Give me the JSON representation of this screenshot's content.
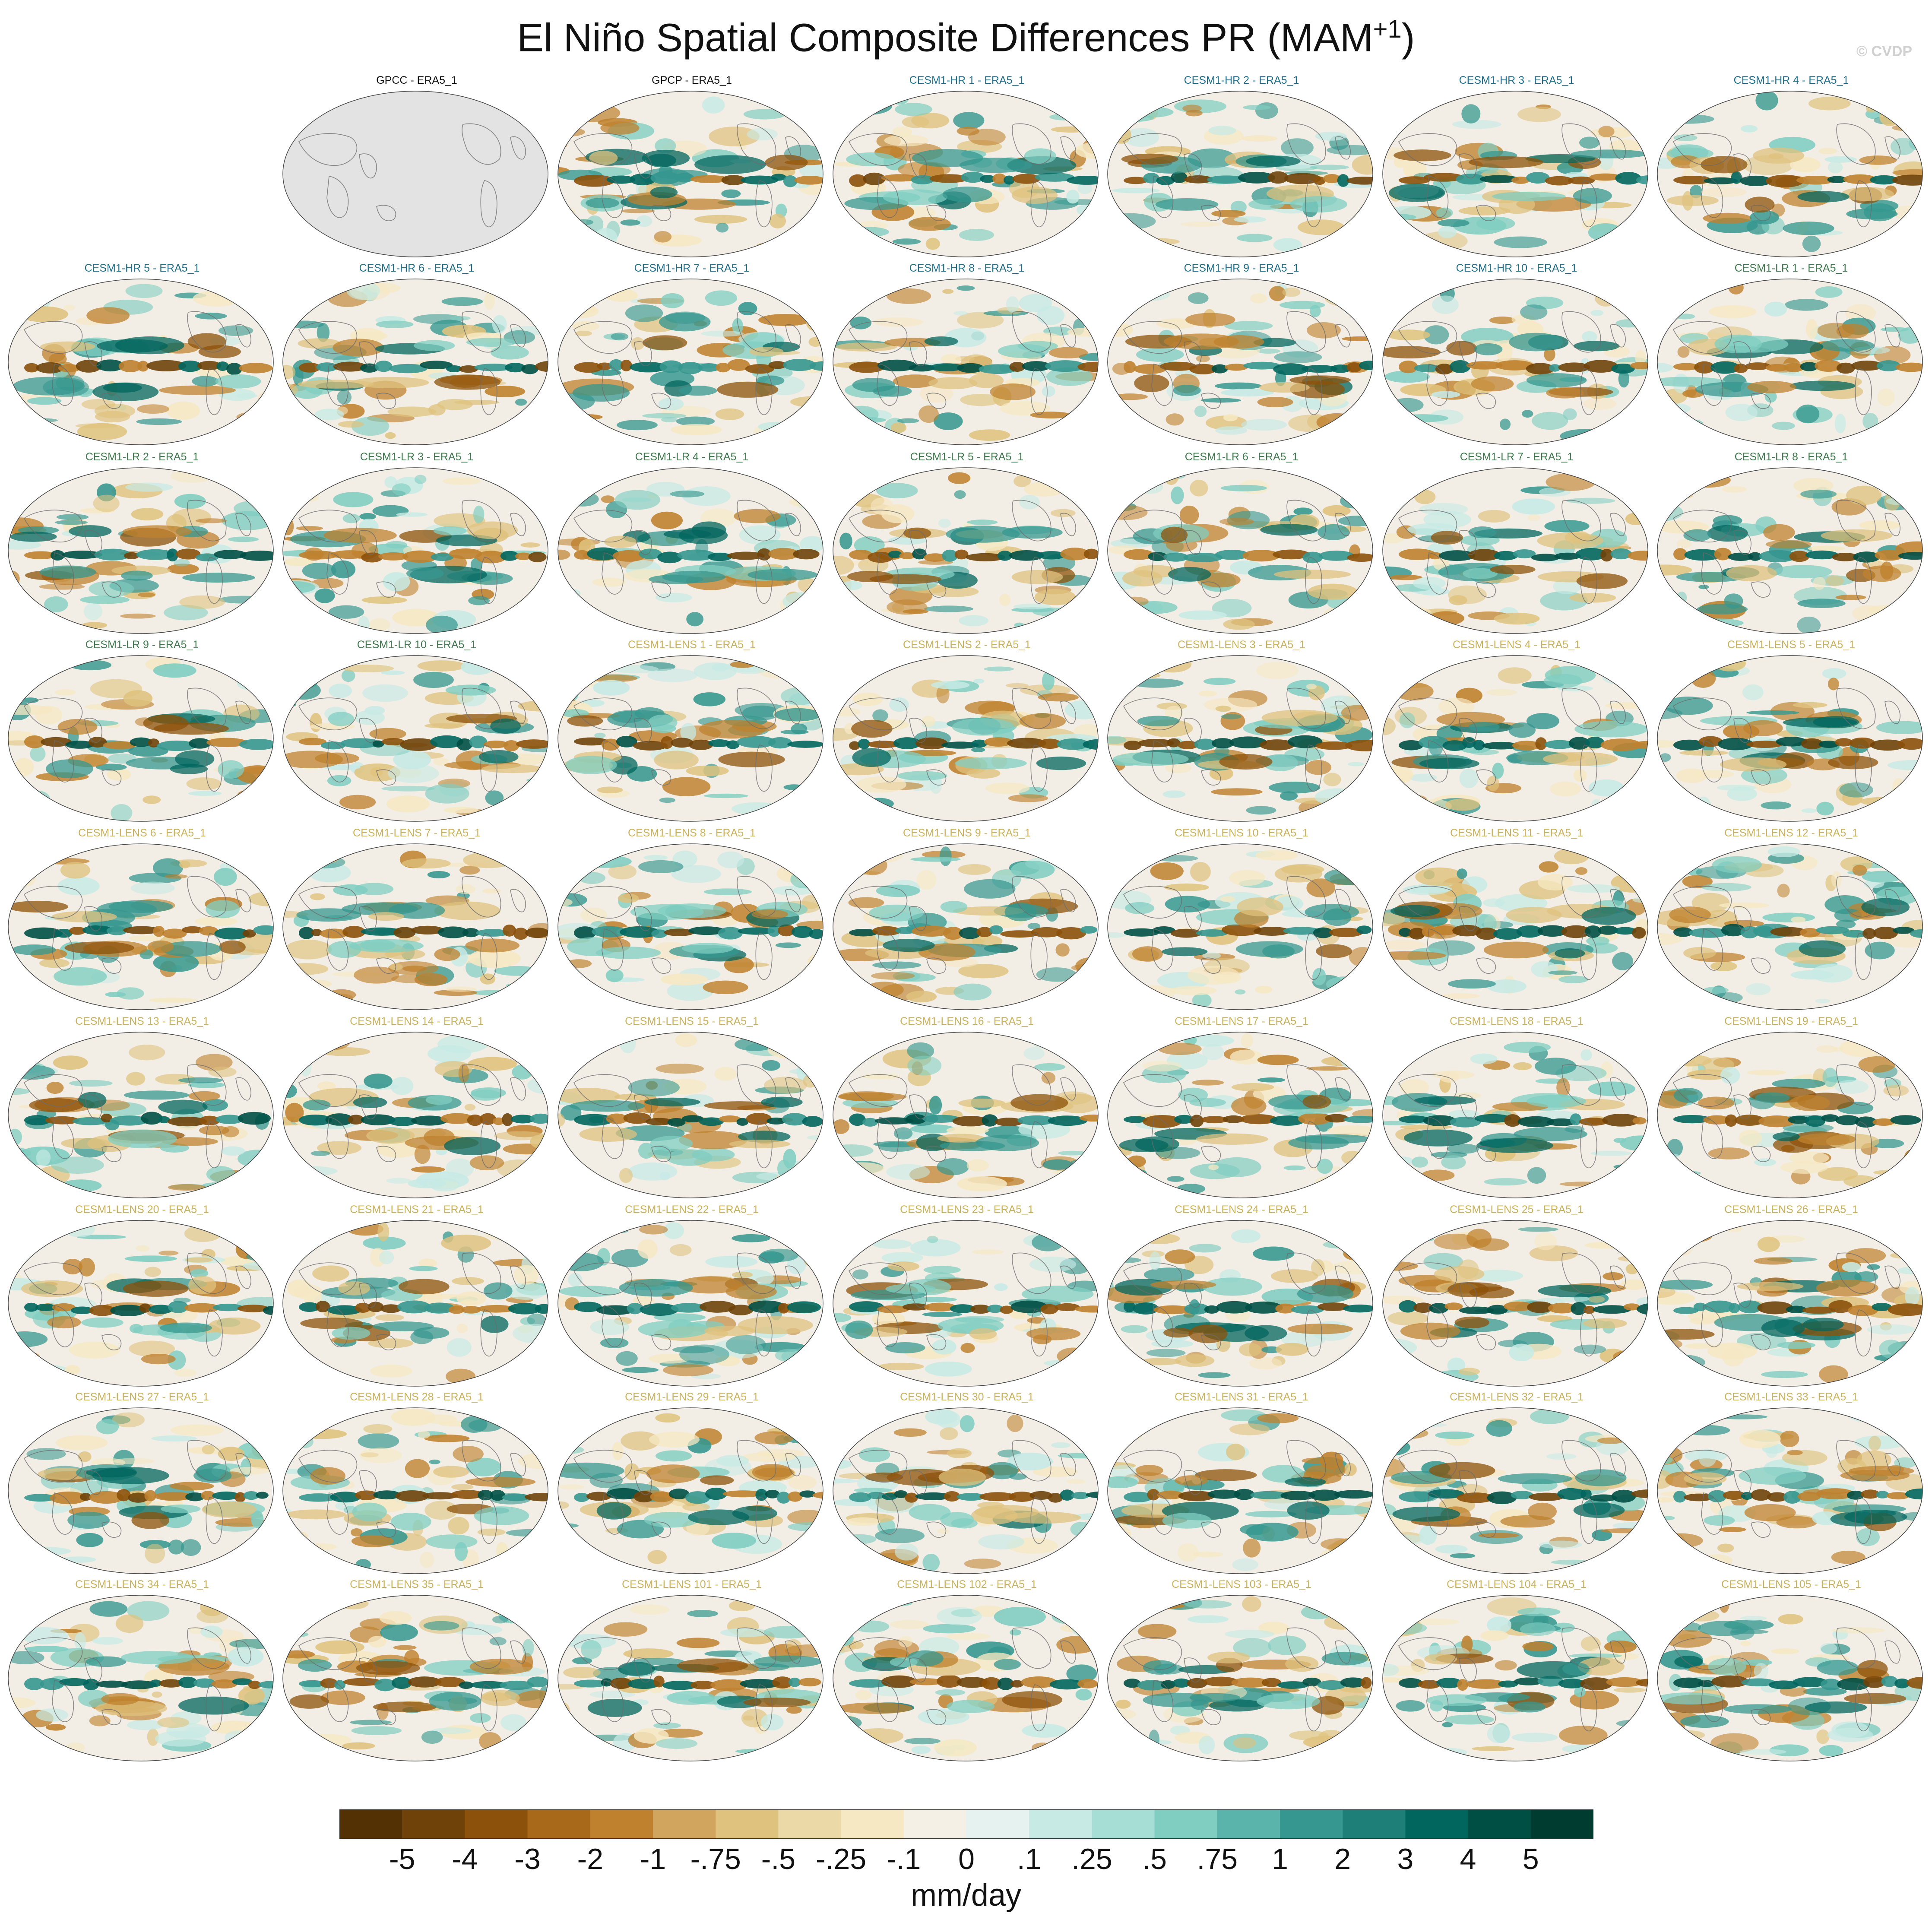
{
  "figure": {
    "title_main": "El Niño Spatial Composite Differences PR (MAM",
    "title_sup": "+1",
    "title_close": ")",
    "watermark": "© CVDP"
  },
  "colors": {
    "obs_title": "#111111",
    "hr_title": "#1f6f8b",
    "lr_title": "#3f7a4e",
    "lens_title": "#c9b25a",
    "missing_fill": "#e3e3e3"
  },
  "panels": [
    {
      "label": "GPCC - ERA5_1",
      "group": "obs",
      "missing": true
    },
    {
      "label": "GPCP - ERA5_1",
      "group": "obs",
      "missing": false
    },
    {
      "label": "CESM1-HR 1 - ERA5_1",
      "group": "hr",
      "missing": false
    },
    {
      "label": "CESM1-HR 2 - ERA5_1",
      "group": "hr",
      "missing": false
    },
    {
      "label": "CESM1-HR 3 - ERA5_1",
      "group": "hr",
      "missing": false
    },
    {
      "label": "CESM1-HR 4 - ERA5_1",
      "group": "hr",
      "missing": false
    },
    {
      "label": "CESM1-HR 5 - ERA5_1",
      "group": "hr",
      "missing": false
    },
    {
      "label": "CESM1-HR 6 - ERA5_1",
      "group": "hr",
      "missing": false
    },
    {
      "label": "CESM1-HR 7 - ERA5_1",
      "group": "hr",
      "missing": false
    },
    {
      "label": "CESM1-HR 8 - ERA5_1",
      "group": "hr",
      "missing": false
    },
    {
      "label": "CESM1-HR 9 - ERA5_1",
      "group": "hr",
      "missing": false
    },
    {
      "label": "CESM1-HR 10 - ERA5_1",
      "group": "hr",
      "missing": false
    },
    {
      "label": "CESM1-LR 1 - ERA5_1",
      "group": "lr",
      "missing": false
    },
    {
      "label": "CESM1-LR 2 - ERA5_1",
      "group": "lr",
      "missing": false
    },
    {
      "label": "CESM1-LR 3 - ERA5_1",
      "group": "lr",
      "missing": false
    },
    {
      "label": "CESM1-LR 4 - ERA5_1",
      "group": "lr",
      "missing": false
    },
    {
      "label": "CESM1-LR 5 - ERA5_1",
      "group": "lr",
      "missing": false
    },
    {
      "label": "CESM1-LR 6 - ERA5_1",
      "group": "lr",
      "missing": false
    },
    {
      "label": "CESM1-LR 7 - ERA5_1",
      "group": "lr",
      "missing": false
    },
    {
      "label": "CESM1-LR 8 - ERA5_1",
      "group": "lr",
      "missing": false
    },
    {
      "label": "CESM1-LR 9 - ERA5_1",
      "group": "lr",
      "missing": false
    },
    {
      "label": "CESM1-LR 10 - ERA5_1",
      "group": "lr",
      "missing": false
    },
    {
      "label": "CESM1-LENS 1 - ERA5_1",
      "group": "lens",
      "missing": false
    },
    {
      "label": "CESM1-LENS 2 - ERA5_1",
      "group": "lens",
      "missing": false
    },
    {
      "label": "CESM1-LENS 3 - ERA5_1",
      "group": "lens",
      "missing": false
    },
    {
      "label": "CESM1-LENS 4 - ERA5_1",
      "group": "lens",
      "missing": false
    },
    {
      "label": "CESM1-LENS 5 - ERA5_1",
      "group": "lens",
      "missing": false
    },
    {
      "label": "CESM1-LENS 6 - ERA5_1",
      "group": "lens",
      "missing": false
    },
    {
      "label": "CESM1-LENS 7 - ERA5_1",
      "group": "lens",
      "missing": false
    },
    {
      "label": "CESM1-LENS 8 - ERA5_1",
      "group": "lens",
      "missing": false
    },
    {
      "label": "CESM1-LENS 9 - ERA5_1",
      "group": "lens",
      "missing": false
    },
    {
      "label": "CESM1-LENS 10 - ERA5_1",
      "group": "lens",
      "missing": false
    },
    {
      "label": "CESM1-LENS 11 - ERA5_1",
      "group": "lens",
      "missing": false
    },
    {
      "label": "CESM1-LENS 12 - ERA5_1",
      "group": "lens",
      "missing": false
    },
    {
      "label": "CESM1-LENS 13 - ERA5_1",
      "group": "lens",
      "missing": false
    },
    {
      "label": "CESM1-LENS 14 - ERA5_1",
      "group": "lens",
      "missing": false
    },
    {
      "label": "CESM1-LENS 15 - ERA5_1",
      "group": "lens",
      "missing": false
    },
    {
      "label": "CESM1-LENS 16 - ERA5_1",
      "group": "lens",
      "missing": false
    },
    {
      "label": "CESM1-LENS 17 - ERA5_1",
      "group": "lens",
      "missing": false
    },
    {
      "label": "CESM1-LENS 18 - ERA5_1",
      "group": "lens",
      "missing": false
    },
    {
      "label": "CESM1-LENS 19 - ERA5_1",
      "group": "lens",
      "missing": false
    },
    {
      "label": "CESM1-LENS 20 - ERA5_1",
      "group": "lens",
      "missing": false
    },
    {
      "label": "CESM1-LENS 21 - ERA5_1",
      "group": "lens",
      "missing": false
    },
    {
      "label": "CESM1-LENS 22 - ERA5_1",
      "group": "lens",
      "missing": false
    },
    {
      "label": "CESM1-LENS 23 - ERA5_1",
      "group": "lens",
      "missing": false
    },
    {
      "label": "CESM1-LENS 24 - ERA5_1",
      "group": "lens",
      "missing": false
    },
    {
      "label": "CESM1-LENS 25 - ERA5_1",
      "group": "lens",
      "missing": false
    },
    {
      "label": "CESM1-LENS 26 - ERA5_1",
      "group": "lens",
      "missing": false
    },
    {
      "label": "CESM1-LENS 27 - ERA5_1",
      "group": "lens",
      "missing": false
    },
    {
      "label": "CESM1-LENS 28 - ERA5_1",
      "group": "lens",
      "missing": false
    },
    {
      "label": "CESM1-LENS 29 - ERA5_1",
      "group": "lens",
      "missing": false
    },
    {
      "label": "CESM1-LENS 30 - ERA5_1",
      "group": "lens",
      "missing": false
    },
    {
      "label": "CESM1-LENS 31 - ERA5_1",
      "group": "lens",
      "missing": false
    },
    {
      "label": "CESM1-LENS 32 - ERA5_1",
      "group": "lens",
      "missing": false
    },
    {
      "label": "CESM1-LENS 33 - ERA5_1",
      "group": "lens",
      "missing": false
    },
    {
      "label": "CESM1-LENS 34 - ERA5_1",
      "group": "lens",
      "missing": false
    },
    {
      "label": "CESM1-LENS 35 - ERA5_1",
      "group": "lens",
      "missing": false
    },
    {
      "label": "CESM1-LENS 101 - ERA5_1",
      "group": "lens",
      "missing": false
    },
    {
      "label": "CESM1-LENS 102 - ERA5_1",
      "group": "lens",
      "missing": false
    },
    {
      "label": "CESM1-LENS 103 - ERA5_1",
      "group": "lens",
      "missing": false
    },
    {
      "label": "CESM1-LENS 104 - ERA5_1",
      "group": "lens",
      "missing": false
    },
    {
      "label": "CESM1-LENS 105 - ERA5_1",
      "group": "lens",
      "missing": false
    }
  ],
  "colorbar": {
    "colors": [
      "#543005",
      "#6f4209",
      "#8c510a",
      "#a8691b",
      "#bf812d",
      "#d2a55e",
      "#dfc27d",
      "#ecd9a8",
      "#f6e8c3",
      "#f5f0e6",
      "#e6f2ef",
      "#c7eae5",
      "#a6ddd4",
      "#80cdc1",
      "#5ab4ac",
      "#35978f",
      "#1d7f77",
      "#01665e",
      "#004f45",
      "#003c30"
    ],
    "labels": [
      "-5",
      "-4",
      "-3",
      "-2",
      "-1",
      "-.75",
      "-.5",
      "-.25",
      "-.1",
      "0",
      ".1",
      ".25",
      ".5",
      ".75",
      "1",
      "2",
      "3",
      "4",
      "5"
    ],
    "units": "mm/day"
  }
}
